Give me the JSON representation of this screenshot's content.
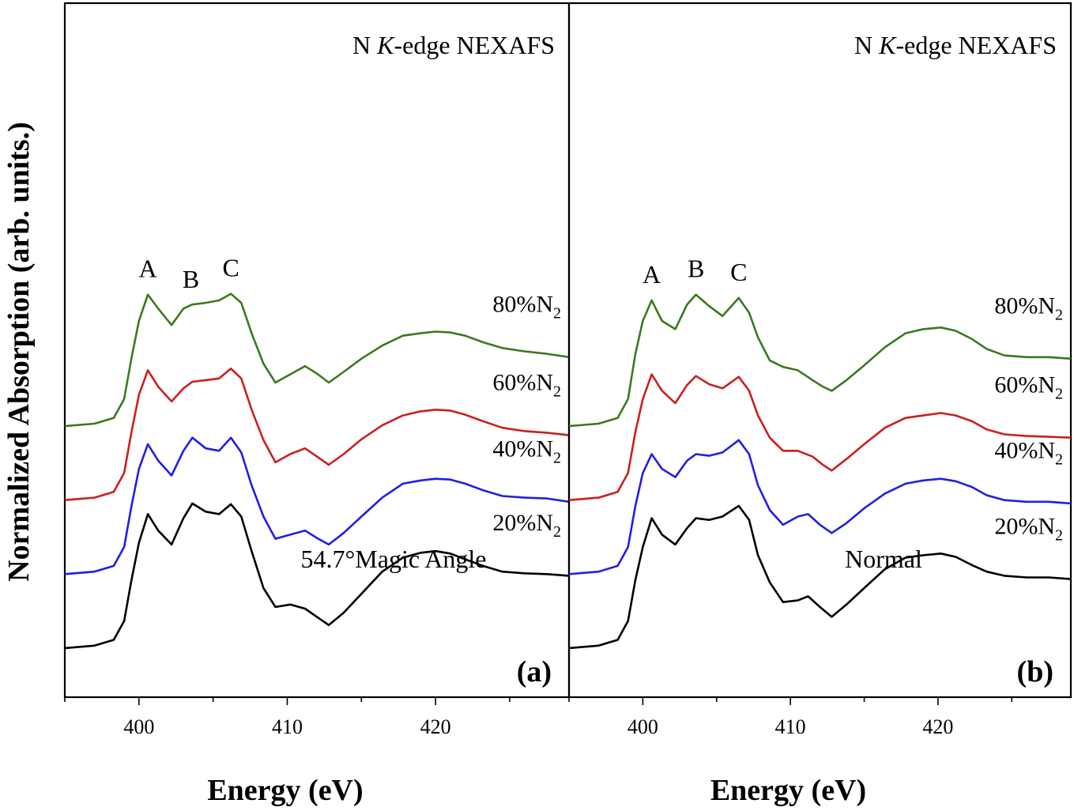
{
  "chart_data": {
    "type": "line",
    "ylabel": "Normalized Absorption (arb. units.)",
    "xlim": [
      395,
      429
    ],
    "xticks": [
      400,
      410,
      420
    ],
    "series_colors": {
      "80%N2": "#3a7a1f",
      "60%N2": "#cc1f1f",
      "40%N2": "#1f1fe6",
      "20%N2": "#000000"
    },
    "panels": [
      {
        "id": "(a)",
        "xlabel": "Energy (eV)",
        "title": "N K-edge NEXAFS",
        "title_parts": [
          "N ",
          "K",
          "-edge NEXAFS"
        ],
        "condition": "54.7°Magic Angle",
        "peak_labels": [
          {
            "text": "A",
            "x": 400.6
          },
          {
            "text": "B",
            "x": 403.5
          },
          {
            "text": "C",
            "x": 406.2
          }
        ],
        "series": [
          {
            "name": "80%N2",
            "label_main": "80%N",
            "label_sub": "2",
            "offset": 2.7,
            "x": [
              395,
              397,
              398.3,
              399.0,
              399.5,
              400.0,
              400.6,
              401.3,
              402.2,
              403.0,
              403.6,
              404.5,
              405.4,
              406.2,
              406.9,
              407.6,
              408.4,
              409.2,
              410.2,
              411.2,
              412.0,
              412.8,
              413.8,
              415.0,
              416.4,
              417.8,
              419.0,
              420.0,
              421.0,
              422.0,
              423.2,
              424.5,
              426.0,
              427.5,
              429
            ],
            "y": [
              0.02,
              0.05,
              0.12,
              0.35,
              0.85,
              1.3,
              1.62,
              1.45,
              1.25,
              1.45,
              1.5,
              1.52,
              1.55,
              1.63,
              1.52,
              1.15,
              0.78,
              0.55,
              0.65,
              0.75,
              0.66,
              0.55,
              0.68,
              0.84,
              1.0,
              1.12,
              1.15,
              1.17,
              1.16,
              1.12,
              1.04,
              0.97,
              0.93,
              0.9,
              0.86
            ]
          },
          {
            "name": "60%N2",
            "label_main": "60%N",
            "label_sub": "2",
            "offset": 1.8,
            "x": [
              395,
              397,
              398.3,
              399.0,
              399.5,
              400.0,
              400.6,
              401.3,
              402.2,
              403.0,
              403.6,
              404.5,
              405.4,
              406.2,
              406.9,
              407.6,
              408.4,
              409.2,
              410.2,
              411.2,
              412.0,
              412.8,
              413.8,
              415.0,
              416.4,
              417.8,
              419.0,
              420.0,
              421.0,
              422.0,
              423.2,
              424.5,
              426.0,
              427.5,
              429
            ],
            "y": [
              0.02,
              0.05,
              0.12,
              0.35,
              0.85,
              1.3,
              1.6,
              1.4,
              1.22,
              1.38,
              1.46,
              1.48,
              1.5,
              1.62,
              1.5,
              1.12,
              0.75,
              0.48,
              0.58,
              0.65,
              0.55,
              0.45,
              0.58,
              0.76,
              0.93,
              1.05,
              1.1,
              1.12,
              1.11,
              1.06,
              0.98,
              0.9,
              0.86,
              0.84,
              0.81
            ]
          },
          {
            "name": "40%N2",
            "label_main": "40%N",
            "label_sub": "2",
            "offset": 0.9,
            "x": [
              395,
              397,
              398.3,
              399.0,
              399.5,
              400.0,
              400.6,
              401.3,
              402.2,
              403.0,
              403.6,
              404.5,
              405.4,
              406.2,
              406.9,
              407.6,
              408.4,
              409.2,
              410.2,
              411.2,
              412.0,
              412.8,
              413.8,
              415.0,
              416.4,
              417.8,
              419.0,
              420.0,
              421.0,
              422.0,
              423.2,
              424.5,
              426.0,
              427.5,
              429
            ],
            "y": [
              0.02,
              0.05,
              0.12,
              0.35,
              0.85,
              1.3,
              1.6,
              1.4,
              1.22,
              1.52,
              1.68,
              1.55,
              1.52,
              1.68,
              1.5,
              1.1,
              0.72,
              0.45,
              0.5,
              0.55,
              0.46,
              0.38,
              0.52,
              0.72,
              0.95,
              1.12,
              1.16,
              1.18,
              1.17,
              1.12,
              1.04,
              0.97,
              0.95,
              0.94,
              0.9
            ]
          },
          {
            "name": "20%N2",
            "label_main": "20%N",
            "label_sub": "2",
            "offset": 0.0,
            "x": [
              395,
              397,
              398.3,
              399.0,
              399.5,
              400.0,
              400.6,
              401.3,
              402.2,
              403.0,
              403.6,
              404.5,
              405.4,
              406.2,
              406.9,
              407.6,
              408.4,
              409.2,
              410.2,
              411.2,
              412.0,
              412.8,
              413.8,
              415.0,
              416.4,
              417.8,
              419.0,
              420.0,
              421.0,
              422.0,
              423.2,
              424.5,
              426.0,
              427.5,
              429
            ],
            "y": [
              0.02,
              0.05,
              0.12,
              0.35,
              0.85,
              1.3,
              1.65,
              1.45,
              1.28,
              1.6,
              1.78,
              1.68,
              1.65,
              1.77,
              1.62,
              1.2,
              0.75,
              0.52,
              0.55,
              0.5,
              0.4,
              0.3,
              0.45,
              0.68,
              0.95,
              1.12,
              1.18,
              1.2,
              1.17,
              1.1,
              1.02,
              0.95,
              0.93,
              0.92,
              0.9
            ]
          }
        ]
      },
      {
        "id": "(b)",
        "xlabel": "Energy (eV)",
        "title": "N K-edge NEXAFS",
        "title_parts": [
          "N ",
          "K",
          "-edge NEXAFS"
        ],
        "condition": "Normal",
        "peak_labels": [
          {
            "text": "A",
            "x": 400.6
          },
          {
            "text": "B",
            "x": 403.6
          },
          {
            "text": "C",
            "x": 406.5
          }
        ],
        "series": [
          {
            "name": "80%N2",
            "label_main": "80%N",
            "label_sub": "2",
            "offset": 2.7,
            "x": [
              395,
              397,
              398.3,
              399.0,
              399.5,
              400.0,
              400.6,
              401.3,
              402.2,
              403.0,
              403.6,
              404.5,
              405.4,
              406.5,
              407.2,
              407.8,
              408.6,
              409.5,
              410.5,
              411.5,
              412.2,
              412.8,
              413.8,
              415.0,
              416.4,
              417.8,
              419.0,
              420.2,
              421.2,
              422.3,
              423.3,
              424.5,
              426.0,
              427.5,
              429
            ],
            "y": [
              0.02,
              0.05,
              0.12,
              0.35,
              0.9,
              1.3,
              1.55,
              1.3,
              1.2,
              1.5,
              1.62,
              1.48,
              1.36,
              1.58,
              1.4,
              1.1,
              0.82,
              0.74,
              0.7,
              0.58,
              0.5,
              0.45,
              0.58,
              0.76,
              0.98,
              1.15,
              1.2,
              1.22,
              1.18,
              1.08,
              0.96,
              0.88,
              0.86,
              0.86,
              0.84
            ]
          },
          {
            "name": "60%N2",
            "label_main": "60%N",
            "label_sub": "2",
            "offset": 1.8,
            "x": [
              395,
              397,
              398.3,
              399.0,
              399.5,
              400.0,
              400.6,
              401.3,
              402.2,
              403.0,
              403.6,
              404.5,
              405.4,
              406.5,
              407.2,
              407.8,
              408.6,
              409.5,
              410.5,
              411.5,
              412.2,
              412.8,
              413.8,
              415.0,
              416.4,
              417.8,
              419.0,
              420.2,
              421.2,
              422.3,
              423.3,
              424.5,
              426.0,
              427.5,
              429
            ],
            "y": [
              0.02,
              0.05,
              0.12,
              0.35,
              0.85,
              1.25,
              1.55,
              1.35,
              1.2,
              1.42,
              1.53,
              1.43,
              1.38,
              1.52,
              1.35,
              1.05,
              0.78,
              0.62,
              0.62,
              0.55,
              0.45,
              0.38,
              0.52,
              0.7,
              0.9,
              1.02,
              1.05,
              1.08,
              1.05,
              0.98,
              0.88,
              0.82,
              0.8,
              0.79,
              0.78
            ]
          },
          {
            "name": "40%N2",
            "label_main": "40%N",
            "label_sub": "2",
            "offset": 0.9,
            "x": [
              395,
              397,
              398.3,
              399.0,
              399.5,
              400.0,
              400.6,
              401.3,
              402.2,
              403.0,
              403.6,
              404.5,
              405.4,
              406.5,
              407.2,
              407.8,
              408.6,
              409.5,
              410.5,
              411.2,
              412.0,
              412.8,
              413.8,
              415.0,
              416.4,
              417.8,
              419.0,
              420.2,
              421.2,
              422.3,
              423.3,
              424.5,
              426.0,
              427.5,
              429
            ],
            "y": [
              0.02,
              0.05,
              0.12,
              0.35,
              0.85,
              1.25,
              1.48,
              1.3,
              1.2,
              1.4,
              1.48,
              1.46,
              1.5,
              1.65,
              1.48,
              1.1,
              0.8,
              0.62,
              0.72,
              0.75,
              0.62,
              0.52,
              0.64,
              0.82,
              1.0,
              1.12,
              1.16,
              1.18,
              1.15,
              1.08,
              0.98,
              0.92,
              0.9,
              0.9,
              0.88
            ]
          },
          {
            "name": "20%N2",
            "label_main": "20%N",
            "label_sub": "2",
            "offset": 0.0,
            "x": [
              395,
              397,
              398.3,
              399.0,
              399.5,
              400.0,
              400.6,
              401.3,
              402.2,
              403.0,
              403.6,
              404.5,
              405.4,
              406.5,
              407.2,
              407.8,
              408.6,
              409.5,
              410.5,
              411.2,
              412.0,
              412.8,
              413.8,
              415.0,
              416.4,
              417.8,
              419.0,
              420.2,
              421.2,
              422.3,
              423.3,
              424.5,
              426.0,
              427.5,
              429
            ],
            "y": [
              0.02,
              0.05,
              0.12,
              0.35,
              0.85,
              1.25,
              1.6,
              1.4,
              1.28,
              1.48,
              1.6,
              1.58,
              1.62,
              1.75,
              1.58,
              1.15,
              0.82,
              0.58,
              0.6,
              0.65,
              0.52,
              0.4,
              0.55,
              0.75,
              0.98,
              1.12,
              1.15,
              1.17,
              1.13,
              1.03,
              0.95,
              0.9,
              0.88,
              0.88,
              0.86
            ]
          }
        ]
      }
    ]
  }
}
